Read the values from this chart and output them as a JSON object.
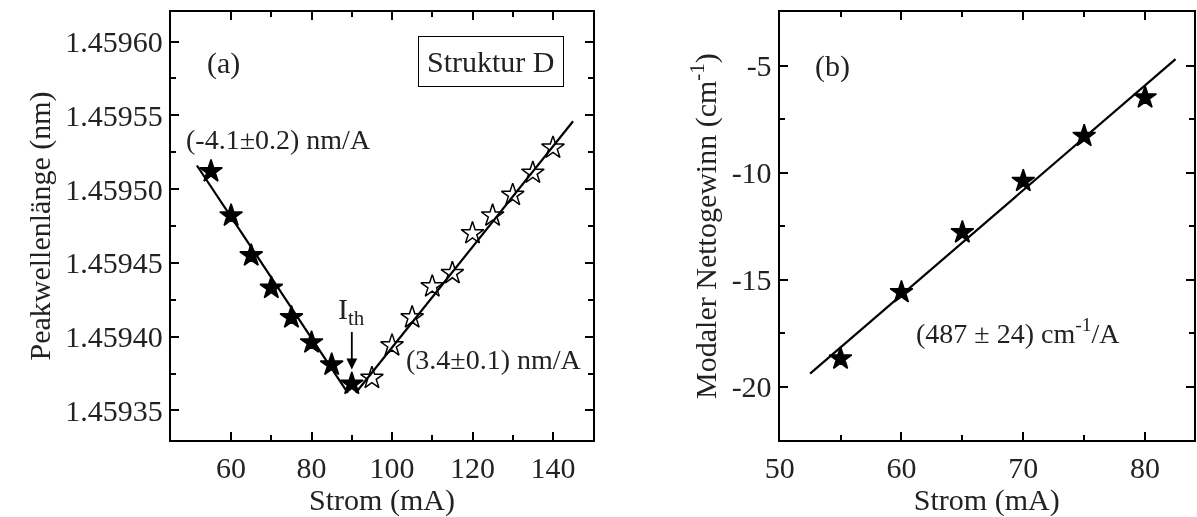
{
  "chart_data": [
    {
      "type": "scatter",
      "xlabel": "Strom (mA)",
      "ylabel": "Peakwellenlänge (nm)",
      "xlim": [
        45,
        150
      ],
      "xticks": [
        60,
        80,
        100,
        120,
        140
      ],
      "ylim": [
        1.45933,
        1.45962
      ],
      "yticks": [
        1.45935,
        {
          "value": 1.4594,
          "label": "1.45940"
        },
        1.45945,
        {
          "value": 1.4595,
          "label": "1.45950"
        },
        1.45955,
        {
          "value": 1.4596,
          "label": "1.45960"
        }
      ],
      "series": [
        {
          "marker": "star",
          "color": "#000000",
          "x": [
            55,
            60,
            65,
            70,
            75,
            80,
            85,
            90
          ],
          "values": [
            1.459512,
            1.459482,
            1.459455,
            1.459433,
            1.459413,
            1.459396,
            1.459381,
            1.459368
          ]
        },
        {
          "marker": "star",
          "color": "#ffffff",
          "x": [
            95,
            100,
            105,
            110,
            115,
            120,
            125,
            130,
            135,
            140
          ],
          "values": [
            1.459372,
            1.459394,
            1.459413,
            1.459434,
            1.459443,
            1.45947,
            1.459482,
            1.459496,
            1.459511,
            1.459528
          ]
        },
        {
          "type": "line",
          "color": "#000000",
          "x": [
            51.5,
            89
          ],
          "values": [
            1.459516,
            1.459362
          ]
        },
        {
          "type": "line",
          "color": "#000000",
          "x": [
            91,
            145
          ],
          "values": [
            1.459362,
            1.459546
          ]
        }
      ],
      "annotations": [
        "(a)",
        "Struktur D",
        "(-4.1±0.2) nm/A",
        "(3.4±0.1) nm/A",
        "I$_{th}$"
      ]
    },
    {
      "type": "scatter",
      "xlabel": "Strom (mA)",
      "ylabel": "Modaler Nettogewinn (cm$^{-1}$)",
      "xlim": [
        50,
        84
      ],
      "xticks": [
        50,
        60,
        70,
        80
      ],
      "ylim": [
        -22.5,
        -2.5
      ],
      "yticks": [
        -20,
        -15,
        -10,
        -5
      ],
      "series": [
        {
          "marker": "star",
          "color": "#000000",
          "x": [
            55,
            60,
            65,
            70,
            75,
            80
          ],
          "values": [
            -18.7,
            -15.6,
            -12.8,
            -10.4,
            -8.3,
            -6.5
          ]
        },
        {
          "type": "line",
          "color": "#000000",
          "x": [
            52.5,
            82.5
          ],
          "values": [
            -19.4,
            -4.7
          ]
        }
      ],
      "annotations": [
        "(b)",
        "(487 ± 24) cm$^{-1}$/A"
      ]
    }
  ]
}
